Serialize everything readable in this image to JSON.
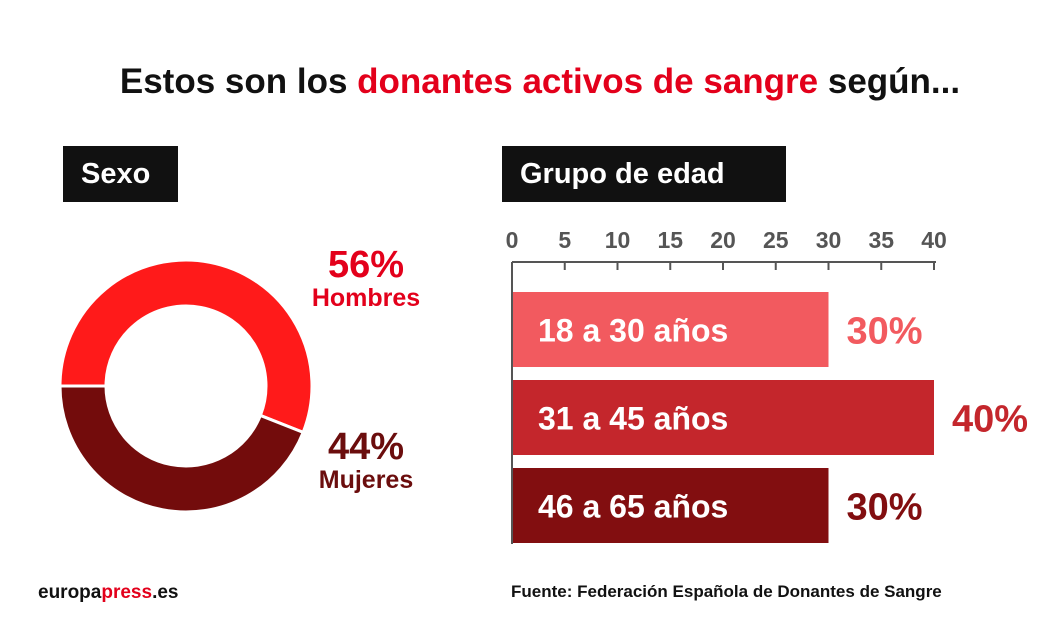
{
  "title": {
    "prefix": "Estos son los ",
    "highlight": "donantes activos de sangre",
    "suffix": " según..."
  },
  "colors": {
    "accent": "#e3001b",
    "dark_red": "#6b0d0d",
    "bar_light": "#f25a5f",
    "bar_mid": "#c4262c",
    "bar_dark": "#820e10",
    "label_bg": "#111111"
  },
  "chart_data": [
    {
      "type": "pie",
      "title": "Sexo",
      "slices": [
        {
          "label": "Hombres",
          "value": 56,
          "display": "56%",
          "color": "#ff1a1a"
        },
        {
          "label": "Mujeres",
          "value": 44,
          "display": "44%",
          "color": "#730c0c"
        }
      ]
    },
    {
      "type": "bar",
      "orientation": "horizontal",
      "title": "Grupo de edad",
      "categories": [
        "18 a 30 años",
        "31 a 45 años",
        "46 a 65 años"
      ],
      "values": [
        30,
        40,
        30
      ],
      "value_labels": [
        "30%",
        "40%",
        "30%"
      ],
      "bar_colors": [
        "#f25a5f",
        "#c4262c",
        "#820e10"
      ],
      "label_colors": [
        "#f25a5f",
        "#c4262c",
        "#820e10"
      ],
      "xlim": [
        0,
        40
      ],
      "xticks": [
        0,
        5,
        10,
        15,
        20,
        25,
        30,
        35,
        40
      ],
      "axis_position": "top"
    }
  ],
  "footer": {
    "brand_prefix": "europa",
    "brand_highlight": "press",
    "brand_suffix": ".es",
    "source": "Fuente: Federación Española de Donantes de Sangre"
  }
}
